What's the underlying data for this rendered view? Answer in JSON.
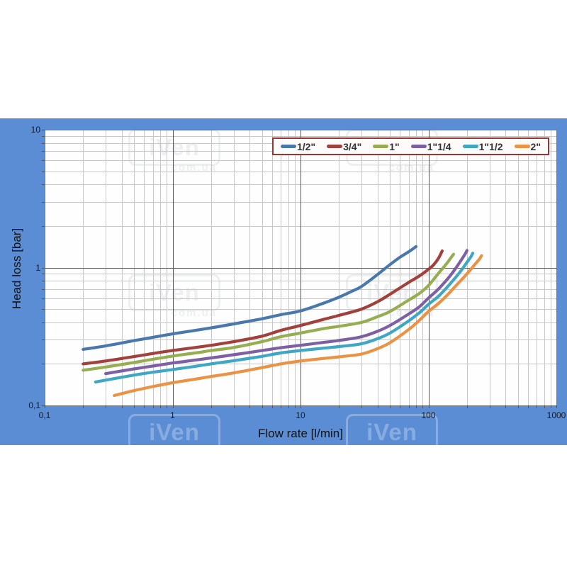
{
  "watermark": {
    "line1": "iVen",
    "line2": "com.ua"
  },
  "axes": {
    "x": {
      "title": "Flow rate [l/min]",
      "scale": "log",
      "min": 0.1,
      "max": 1000,
      "tick_labels": [
        "0,1",
        "1",
        "10",
        "100",
        "1000"
      ],
      "tick_values": [
        0.1,
        1,
        10,
        100,
        1000
      ]
    },
    "y": {
      "title": "Head loss [bar]",
      "scale": "log",
      "min": 0.1,
      "max": 10,
      "tick_labels": [
        "10",
        "1",
        "0,1"
      ],
      "tick_values": [
        10,
        1,
        0.1
      ]
    }
  },
  "colors": {
    "page_background": "#ffffff",
    "band_background": "#5a8dd4",
    "plot_background": "#fefefe",
    "grid_minor": "#c7c7c7",
    "grid_major": "#555555",
    "plot_border": "#7a7a7a",
    "legend_border": "#953735",
    "text": "#1a1a1a"
  },
  "chart_data": {
    "type": "line",
    "title": "",
    "xlabel": "Flow rate [l/min]",
    "ylabel": "Head loss [bar]",
    "x_scale": "log",
    "y_scale": "log",
    "xlim": [
      0.1,
      1000
    ],
    "ylim": [
      0.1,
      10
    ],
    "grid": "both-minor-and-major",
    "legend_position": "top-right-inside",
    "series": [
      {
        "id": "1-2",
        "name": "1/2\"",
        "color": "#4a78ad",
        "points": [
          [
            0.2,
            0.255
          ],
          [
            0.3,
            0.27
          ],
          [
            0.5,
            0.295
          ],
          [
            0.7,
            0.312
          ],
          [
            1,
            0.33
          ],
          [
            1.5,
            0.35
          ],
          [
            2,
            0.365
          ],
          [
            3,
            0.39
          ],
          [
            5,
            0.425
          ],
          [
            7,
            0.455
          ],
          [
            10,
            0.485
          ],
          [
            15,
            0.55
          ],
          [
            20,
            0.61
          ],
          [
            25,
            0.67
          ],
          [
            30,
            0.73
          ],
          [
            40,
            0.89
          ],
          [
            50,
            1.05
          ],
          [
            60,
            1.19
          ],
          [
            70,
            1.3
          ],
          [
            80,
            1.42
          ]
        ]
      },
      {
        "id": "3-4",
        "name": "3/4\"",
        "color": "#a2413c",
        "points": [
          [
            0.2,
            0.2
          ],
          [
            0.3,
            0.21
          ],
          [
            0.5,
            0.226
          ],
          [
            0.7,
            0.238
          ],
          [
            1,
            0.25
          ],
          [
            1.5,
            0.263
          ],
          [
            2,
            0.273
          ],
          [
            3,
            0.29
          ],
          [
            5,
            0.318
          ],
          [
            7,
            0.35
          ],
          [
            10,
            0.38
          ],
          [
            15,
            0.42
          ],
          [
            20,
            0.45
          ],
          [
            30,
            0.5
          ],
          [
            40,
            0.565
          ],
          [
            50,
            0.64
          ],
          [
            70,
            0.78
          ],
          [
            85,
            0.87
          ],
          [
            100,
            0.97
          ],
          [
            110,
            1.05
          ],
          [
            120,
            1.17
          ],
          [
            128,
            1.32
          ]
        ]
      },
      {
        "id": "1",
        "name": "1\"",
        "color": "#96ad52",
        "points": [
          [
            0.2,
            0.18
          ],
          [
            0.3,
            0.19
          ],
          [
            0.5,
            0.205
          ],
          [
            0.7,
            0.216
          ],
          [
            1,
            0.228
          ],
          [
            1.5,
            0.24
          ],
          [
            2,
            0.25
          ],
          [
            3,
            0.263
          ],
          [
            5,
            0.29
          ],
          [
            7,
            0.315
          ],
          [
            10,
            0.335
          ],
          [
            15,
            0.36
          ],
          [
            20,
            0.375
          ],
          [
            30,
            0.4
          ],
          [
            40,
            0.44
          ],
          [
            50,
            0.48
          ],
          [
            70,
            0.58
          ],
          [
            85,
            0.65
          ],
          [
            100,
            0.74
          ],
          [
            120,
            0.91
          ],
          [
            140,
            1.08
          ],
          [
            150,
            1.18
          ],
          [
            157,
            1.25
          ]
        ]
      },
      {
        "id": "1-1-4",
        "name": "1\"1/4",
        "color": "#7d5fa3",
        "points": [
          [
            0.3,
            0.17
          ],
          [
            0.5,
            0.184
          ],
          [
            0.7,
            0.193
          ],
          [
            1,
            0.203
          ],
          [
            1.5,
            0.213
          ],
          [
            2,
            0.221
          ],
          [
            3,
            0.233
          ],
          [
            5,
            0.25
          ],
          [
            7,
            0.262
          ],
          [
            10,
            0.273
          ],
          [
            15,
            0.286
          ],
          [
            20,
            0.296
          ],
          [
            30,
            0.315
          ],
          [
            40,
            0.345
          ],
          [
            50,
            0.38
          ],
          [
            70,
            0.46
          ],
          [
            85,
            0.52
          ],
          [
            100,
            0.6
          ],
          [
            120,
            0.7
          ],
          [
            140,
            0.82
          ],
          [
            160,
            0.96
          ],
          [
            180,
            1.13
          ],
          [
            195,
            1.27
          ],
          [
            200,
            1.33
          ]
        ]
      },
      {
        "id": "1-1-2",
        "name": "1\"1/2",
        "color": "#3fa6c3",
        "points": [
          [
            0.25,
            0.148
          ],
          [
            0.5,
            0.166
          ],
          [
            0.7,
            0.174
          ],
          [
            1,
            0.182
          ],
          [
            1.5,
            0.192
          ],
          [
            2,
            0.2
          ],
          [
            3,
            0.211
          ],
          [
            5,
            0.227
          ],
          [
            7,
            0.24
          ],
          [
            10,
            0.25
          ],
          [
            15,
            0.26
          ],
          [
            20,
            0.267
          ],
          [
            30,
            0.28
          ],
          [
            40,
            0.305
          ],
          [
            50,
            0.335
          ],
          [
            70,
            0.41
          ],
          [
            85,
            0.47
          ],
          [
            100,
            0.54
          ],
          [
            120,
            0.62
          ],
          [
            140,
            0.72
          ],
          [
            160,
            0.83
          ],
          [
            180,
            0.95
          ],
          [
            200,
            1.09
          ],
          [
            215,
            1.2
          ],
          [
            222,
            1.27
          ]
        ]
      },
      {
        "id": "2",
        "name": "2\"",
        "color": "#ea9345",
        "points": [
          [
            0.35,
            0.118
          ],
          [
            0.5,
            0.128
          ],
          [
            0.7,
            0.137
          ],
          [
            1,
            0.146
          ],
          [
            1.5,
            0.155
          ],
          [
            2,
            0.162
          ],
          [
            3,
            0.172
          ],
          [
            5,
            0.188
          ],
          [
            7,
            0.2
          ],
          [
            10,
            0.21
          ],
          [
            15,
            0.219
          ],
          [
            20,
            0.225
          ],
          [
            30,
            0.236
          ],
          [
            40,
            0.258
          ],
          [
            50,
            0.285
          ],
          [
            70,
            0.355
          ],
          [
            85,
            0.415
          ],
          [
            100,
            0.48
          ],
          [
            120,
            0.55
          ],
          [
            140,
            0.63
          ],
          [
            160,
            0.72
          ],
          [
            180,
            0.81
          ],
          [
            200,
            0.9
          ],
          [
            230,
            1.05
          ],
          [
            250,
            1.15
          ],
          [
            260,
            1.22
          ]
        ]
      }
    ]
  }
}
